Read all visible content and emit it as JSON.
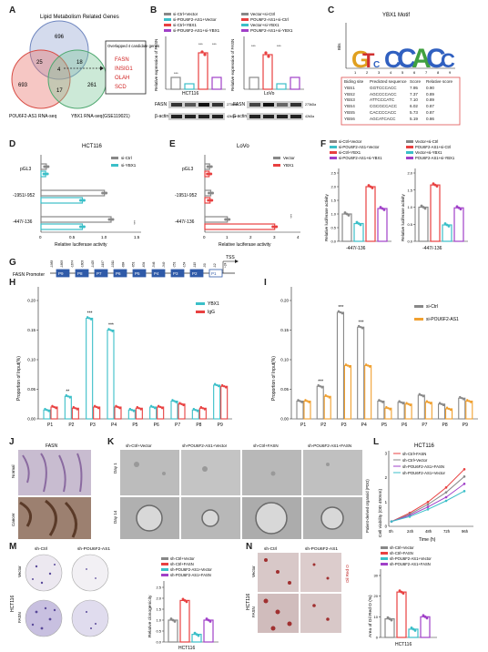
{
  "panel_letters": [
    "A",
    "B",
    "C",
    "D",
    "E",
    "F",
    "G",
    "H",
    "I",
    "J",
    "K",
    "L",
    "M",
    "N"
  ],
  "venn": {
    "title": "Lipid Metabolism Related Genes",
    "label_left": "POU6F2-AS1 RNA-seq",
    "label_right": "YBX1 RNA-seq(GSE119021)",
    "counts": {
      "top": "696",
      "left": "693",
      "right": "261",
      "top_left": "25",
      "top_right": "18",
      "left_right": "17",
      "center": "4"
    },
    "box_title": "Overlapped 4 candidate genes",
    "genes": [
      "FASN",
      "INSIG1",
      "OLAH",
      "SCD"
    ]
  },
  "colors": {
    "ctrl": "#888888",
    "yellow": "#f0a030",
    "red": "#e84040",
    "cyan": "#3bbfc8",
    "purple": "#a040c8",
    "venn_top": "#9fb0d6",
    "venn_left": "#e8736c",
    "venn_right": "#7fc89a"
  },
  "panel_b": {
    "left_legend": [
      "si-Ctrl+Vector",
      "si-POU6F2-AS1+Vector",
      "si-Ctrl+YBX1",
      "si-POU6F2-AS1+si-YBX1"
    ],
    "right_legend": [
      "Vector+si-Ctrl",
      "POU6F2-AS1+si-Ctrl",
      "Vector+si-YBX1",
      "POU6F2-AS1+si-YBX1"
    ],
    "ylabel": "Relative expression of FASN",
    "cell_left": "HCT116",
    "cell_right": "LoVo",
    "blot_rows": [
      "FASN",
      "β-actin"
    ],
    "kda": [
      "273kDa",
      "42kDa"
    ]
  },
  "motif": {
    "title": "YBX1 Motif",
    "ylabel": "Bits",
    "positions": [
      "1",
      "2",
      "3",
      "4",
      "5",
      "6",
      "7",
      "8",
      "9"
    ],
    "table_header": [
      "Biding site",
      "Predicted sequence",
      "Score",
      "Relative score"
    ],
    "table_rows": [
      [
        "YBS1",
        "GGTCCCACC",
        "7.95",
        "0.90"
      ],
      [
        "YBS2",
        "AGCCCCACC",
        "7.37",
        "0.89"
      ],
      [
        "YBS3",
        "ATTCCCATC",
        "7.10",
        "0.89"
      ],
      [
        "YBS4",
        "CGCGCCACC",
        "6.02",
        "0.87"
      ],
      [
        "YBS5",
        "CACCCCACC",
        "5.73",
        "0.87"
      ],
      [
        "YBS6",
        "AGCATCACC",
        "5.19",
        "0.86"
      ]
    ]
  },
  "chart_data": [
    {
      "type": "bar",
      "id": "D",
      "title": "HCT116",
      "orientation": "horizontal",
      "categories": [
        "pGL3",
        "-1951/-952",
        "-447/-136"
      ],
      "series": [
        {
          "name": "si-Ctrl",
          "values": [
            0.08,
            0.95,
            1.05
          ]
        },
        {
          "name": "si-YBX1",
          "values": [
            0.07,
            0.62,
            0.62
          ]
        }
      ],
      "xlabel": "Relative luciferase activity",
      "xlim": [
        0,
        1.5
      ],
      "xticks": [
        "0",
        "0.5",
        "1.0",
        "1.5"
      ],
      "sig": "***"
    },
    {
      "type": "bar",
      "id": "E",
      "title": "LoVo",
      "orientation": "horizontal",
      "categories": [
        "pGL3",
        "-1951/-952",
        "-447/-136"
      ],
      "series": [
        {
          "name": "Vector",
          "values": [
            0.2,
            0.25,
            0.95
          ]
        },
        {
          "name": "YBX1",
          "values": [
            0.18,
            0.22,
            2.95
          ]
        }
      ],
      "xlabel": "Relative luciferase activity",
      "xlim": [
        0,
        4
      ],
      "xticks": [
        "0",
        "1",
        "2",
        "3",
        "4"
      ],
      "sig": "***"
    },
    {
      "type": "bar",
      "id": "F1",
      "categories": [
        "-447/-136"
      ],
      "series": [
        {
          "name": "si-Ctrl+Vector",
          "values": [
            1.0
          ]
        },
        {
          "name": "si-POU6F2-AS1+Vector",
          "values": [
            0.65
          ]
        },
        {
          "name": "si-Ctrl+YBX1",
          "values": [
            2.0
          ]
        },
        {
          "name": "si-POU6F2-AS1+si-YBX1",
          "values": [
            1.2
          ]
        }
      ],
      "ylabel": "Relative luciferase activity",
      "ylim": [
        0,
        2.5
      ],
      "yticks": [
        "0.0",
        "0.5",
        "1.0",
        "1.5",
        "2.0",
        "2.5"
      ]
    },
    {
      "type": "bar",
      "id": "F2",
      "categories": [
        "-447/-136"
      ],
      "series": [
        {
          "name": "Vector+si-Ctrl",
          "values": [
            1.0
          ]
        },
        {
          "name": "POU6F2-AS1+si-Ctrl",
          "values": [
            1.65
          ]
        },
        {
          "name": "Vector+si-YBX1",
          "values": [
            0.48
          ]
        },
        {
          "name": "POU6F2-AS1+si-YBX1",
          "values": [
            0.98
          ]
        }
      ],
      "ylabel": "Relative luciferase activity",
      "ylim": [
        0,
        2.0
      ],
      "yticks": [
        "0.0",
        "0.5",
        "1.0",
        "1.5",
        "2.0"
      ]
    },
    {
      "type": "bar",
      "id": "H",
      "categories": [
        "P1",
        "P2",
        "P3",
        "P4",
        "P5",
        "P6",
        "P7",
        "P8",
        "P9"
      ],
      "series": [
        {
          "name": "YBX1",
          "values": [
            0.015,
            0.038,
            0.17,
            0.15,
            0.015,
            0.02,
            0.03,
            0.015,
            0.057
          ]
        },
        {
          "name": "IgG",
          "values": [
            0.02,
            0.018,
            0.02,
            0.02,
            0.018,
            0.02,
            0.025,
            0.018,
            0.055
          ]
        }
      ],
      "ylabel": "Proportion of Input(%)",
      "ylim": [
        0,
        0.2
      ],
      "yticks": [
        "0.00",
        "0.05",
        "0.10",
        "0.15",
        "0.20"
      ],
      "sig": {
        "P2": "**",
        "P3": "***",
        "P4": "***"
      }
    },
    {
      "type": "bar",
      "id": "I",
      "categories": [
        "P1",
        "P2",
        "P3",
        "P4",
        "P5",
        "P6",
        "P7",
        "P8",
        "P9"
      ],
      "series": [
        {
          "name": "si-Ctrl",
          "values": [
            0.03,
            0.055,
            0.18,
            0.155,
            0.03,
            0.028,
            0.04,
            0.025,
            0.035
          ]
        },
        {
          "name": "si-POU6F2-AS1",
          "values": [
            0.03,
            0.038,
            0.09,
            0.09,
            0.018,
            0.025,
            0.028,
            0.017,
            0.03
          ]
        }
      ],
      "ylabel": "Proportion of Input(%)",
      "ylim": [
        0,
        0.2
      ],
      "yticks": [
        "0.00",
        "0.05",
        "0.10",
        "0.15",
        "0.20"
      ],
      "sig": {
        "P2": "***",
        "P3": "***",
        "P4": "***"
      }
    },
    {
      "type": "line",
      "id": "L",
      "title": "HCT116",
      "x": [
        "0h",
        "24h",
        "48h",
        "72h",
        "96h"
      ],
      "series": [
        {
          "name": "sh-Ctrl+FASN",
          "values": [
            0.2,
            0.55,
            1.0,
            1.6,
            2.35
          ]
        },
        {
          "name": "sh-Ctrl+Vector",
          "values": [
            0.2,
            0.5,
            0.9,
            1.4,
            2.05
          ]
        },
        {
          "name": "sh-POU6F2-AS1+FASN",
          "values": [
            0.2,
            0.45,
            0.8,
            1.2,
            1.75
          ]
        },
        {
          "name": "sh-POU6F2-AS1+Vector",
          "values": [
            0.2,
            0.4,
            0.7,
            1.05,
            1.45
          ]
        }
      ],
      "xlabel": "Time (h)",
      "ylabel": "Cell viability (OD 450nm)",
      "ylim": [
        0,
        3
      ],
      "yticks": [
        "0",
        "1",
        "2",
        "3"
      ]
    },
    {
      "type": "bar",
      "id": "M",
      "categories": [
        "HCT116"
      ],
      "series": [
        {
          "name": "sh-Ctrl+Vector",
          "values": [
            1.0
          ]
        },
        {
          "name": "sh-Ctrl+FASN",
          "values": [
            1.9
          ]
        },
        {
          "name": "sh-POU6F2-AS1+Vector",
          "values": [
            0.35
          ]
        },
        {
          "name": "sh-POU6F2-AS1+FASN",
          "values": [
            1.0
          ]
        }
      ],
      "ylabel": "Relative clonogenicity",
      "ylim": [
        0,
        2.5
      ],
      "yticks": [
        "0.0",
        "0.5",
        "1.0",
        "1.5",
        "2.0",
        "2.5"
      ]
    },
    {
      "type": "bar",
      "id": "N",
      "categories": [
        "HCT116"
      ],
      "series": [
        {
          "name": "sh-Ctrl+Vector",
          "values": [
            9
          ]
        },
        {
          "name": "sh-Ctrl+FASN",
          "values": [
            22
          ]
        },
        {
          "name": "sh-POU6F2-AS1+Vector",
          "values": [
            4
          ]
        },
        {
          "name": "sh-POU6F2-AS1+FASN",
          "values": [
            10
          ]
        }
      ],
      "ylabel": "Area of Oil Red O (%)",
      "ylim": [
        0,
        30
      ],
      "yticks": [
        "0",
        "10",
        "20",
        "30"
      ]
    }
  ],
  "promoter": {
    "label": "FASN Promoter",
    "tss": "TSS",
    "boxes": [
      "P9",
      "P8",
      "P7",
      "P6",
      "P5",
      "P4",
      "P3",
      "P2",
      "P1"
    ],
    "coords": [
      "-1983",
      "-1893",
      "-1674",
      "-1603",
      "-1425",
      "-1197",
      "-1011",
      "-884",
      "-851",
      "-634",
      "-546",
      "-349",
      "-251",
      "-154",
      "-115",
      "-50",
      "-12",
      "+24"
    ]
  },
  "panel_j": {
    "title": "FASN",
    "rows": [
      "Normal",
      "Cancer"
    ]
  },
  "panel_k": {
    "cols": [
      "sh-Ctrl+Vector",
      "sh-POU6F2-AS1+Vector",
      "sh-Ctrl+FASN",
      "sh-POU6F2-AS1+FASN"
    ],
    "rows": [
      "Day 1",
      "Day 14"
    ],
    "side": "Patient-derived organoid (PDO)"
  },
  "panel_m": {
    "cols": [
      "sh-Ctrl",
      "sh-POU6F2-AS1"
    ],
    "rows": [
      "Vector",
      "FASN"
    ],
    "cell": "HCT116"
  },
  "panel_n": {
    "cols": [
      "sh-Ctrl",
      "sh-POU6F2-AS1"
    ],
    "rows": [
      "Vector",
      "FASN"
    ],
    "cell": "HCT116",
    "stain": "Oil Red O"
  },
  "sig3": "***"
}
